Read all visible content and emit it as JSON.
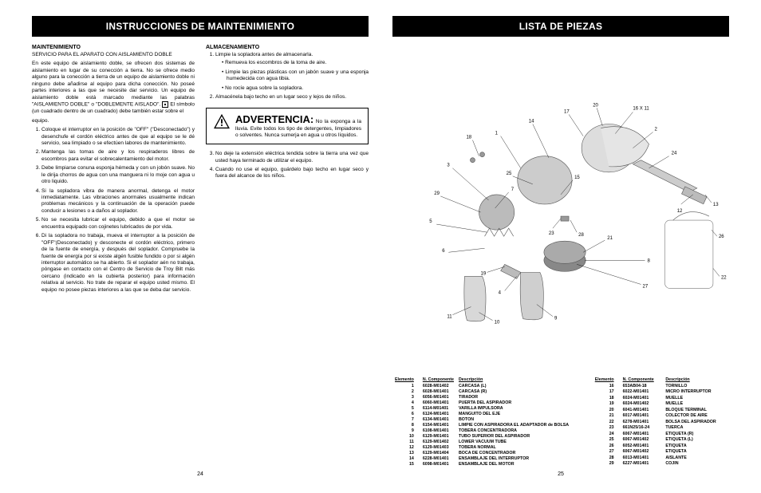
{
  "left": {
    "banner": "INSTRUCCIONES DE MAINTENIMIENTO",
    "maint_title": "MAINTENIMIENTO",
    "maint_sub": "SERVICIO PARA EL APARATO CON AISLAMIENTO DOBLE",
    "maint_p1": "En este equipo de aislamiento doble, se ofrecen dos sistemas de aislamiento en lugar de su conección a tierra. No se ofrece medio alguno para la conección a tierra de un equipo de aislamiento doble ni ninguno debe añadirse al equipo para dicha conección. No poseé partes interiores a las que se necesite dar servicio. Un equipo de aislamiento doble está marcado mediante las palabras \"AISLAMIENTO DOBLE\" o \"DOBLEMENTE AISLADO\".",
    "maint_p1b": "El símbolo (un cuadrado dentro de un cuadrado) debe también estar sobre el",
    "maint_p1c": "equipo.",
    "maint_list": [
      "Coloque el interruptor en la posición de \"OFF\" (\"Desconectado\") y desenchufe el cordón eléctrico antes de que al equipo se le dé servicio, sea limpiado o se efectúen labores de mantenimiento.",
      "Mantenga las tomas de aire y los respiraderos libres de escombros para evitar el sobrecalentamiento del motor.",
      "Debe limpiarse conuna esponja hémeda y con un jobón suave. No le dirija chorros de agua con una manguera ni lo moje con agua u otro liquido.",
      "Si la sopladora vibra de manera anormal, detenga el motor inmediatamente. Las vibraciones anormales usualmente indican problemas mecánicos y la continuación de la operación puede conducir a lesiones o a daños al soplador.",
      "No se necesita lubricar el equipo, debido a que el motor se encuentra equipado con cojinetes lubricados de por vida.",
      "Di la sopladora no trabaja, mueva el interruptor a la posición de \"OFF\"(Desconectado) y desconecte el cordón eléctrico, primero de la fuente de energía, y después del soplador. Compruebe la fuente de energía por si existe algén fusible fundido o por si algén interruptor automático se ha abierto. Si el soplador aén no trabaja, póngase en contacto con el Centro de Servicio de Troy Bilt más cercano (indicado en la cubierta posterior) para información relativa al servicio. No trate de reparar el equipo usted mismo. El equipo no posee piezas interiores a las que se deba dar servicio."
    ],
    "alm_title": "ALMACENAMIENTO",
    "alm_l1": "Limpie la sopladora antes de almacenarla.",
    "alm_b": [
      "Remueva los escombros de la toma de aire.",
      "Limpie las piezas plásticas con un jabón suave y una esponja humedecida con agua tibia.",
      "No rocíe agua sobre la sopladora."
    ],
    "alm_l2": "Almacénela bajo techo en un lugar seco y lejos de niños.",
    "warn_title": "ADVERTENCIA:",
    "warn_body": "No la exponga a la lluvia. Evite todos los tipo de detergentes, limpiadores o solventes. Nunca sumerja en agua u otros líquidos.",
    "alm_l3": "No deje la extensión eléctrica tendida sobre la tierra una vez que usted haya terminado de utilizar el equipo.",
    "alm_l4": "Cuando no use el equipo, guárdelo bajo techo en lugar seco y fuera del alcance de los niños.",
    "pagenum": "24"
  },
  "right": {
    "banner": "LISTA DE PIEZAS",
    "th1": "Elemento",
    "th2": "N. Componente",
    "th3": "Descripción",
    "parts1": [
      [
        "1",
        "6028-M01402",
        "CARCASA (L)"
      ],
      [
        "2",
        "6028-M01401",
        "CARCASA (R)"
      ],
      [
        "3",
        "6056-M01401",
        "TIRADOR"
      ],
      [
        "4",
        "6060-M01401",
        "PUERTA DEL ASPIRADOR"
      ],
      [
        "5",
        "6114-M01401",
        "VARILLA IMPULSORA"
      ],
      [
        "6",
        "6124-M01401",
        "MANGUITO DEL EJE"
      ],
      [
        "7",
        "6134-M01401",
        "BOTON"
      ],
      [
        "8",
        "6154-M01401",
        "LIMPIE CON ASPIRADORA EL ADAPTADOR de BOLSA"
      ],
      [
        "9",
        "6108-M01401",
        "TOBERA CONCENTRADORA"
      ],
      [
        "10",
        "6129-M01401",
        "TUBO SUPERIOR DEL ASPIRADOR"
      ],
      [
        "11",
        "6129-M01402",
        "LOWER VACUUM TUBE"
      ],
      [
        "12",
        "6129-M01403",
        "TOBERA NORMAL"
      ],
      [
        "13",
        "6129-M01404",
        "BOCA DE CONCENTRADOR"
      ],
      [
        "14",
        "6228-M01401",
        "ENSAMBLAJE DEL INTERRUPTOR"
      ],
      [
        "15",
        "6098-M01401",
        "ENSAMBLAJE DEL MOTOR"
      ]
    ],
    "parts2": [
      [
        "16",
        "653AB04-18",
        "TORNILLO"
      ],
      [
        "17",
        "6022-M01401",
        "MICRO INTERRUPTOR"
      ],
      [
        "18",
        "6024-M01401",
        "MUELLE"
      ],
      [
        "19",
        "6024-M01402",
        "MUELLE"
      ],
      [
        "20",
        "6041-M01401",
        "BLOQUE TERMINAL"
      ],
      [
        "21",
        "6017-M01401",
        "COLECTOR DE AIRE"
      ],
      [
        "22",
        "6278-M01401",
        "BOLSA DEL ASPIRADOR"
      ],
      [
        "23",
        "661N25/16-24",
        "TUERCA"
      ],
      [
        "24",
        "6067-M01401",
        "ETIQUETA (R)"
      ],
      [
        "25",
        "6067-M01402",
        "ETIQUETA (L)"
      ],
      [
        "26",
        "6052-M01401",
        "ETIQUETA"
      ],
      [
        "27",
        "6067-M01402",
        "ETIQUETA"
      ],
      [
        "28",
        "6013-M01401",
        "AISLANTE"
      ],
      [
        "29",
        "6227-M01401",
        "COJIN"
      ]
    ],
    "pagenum": "25"
  }
}
